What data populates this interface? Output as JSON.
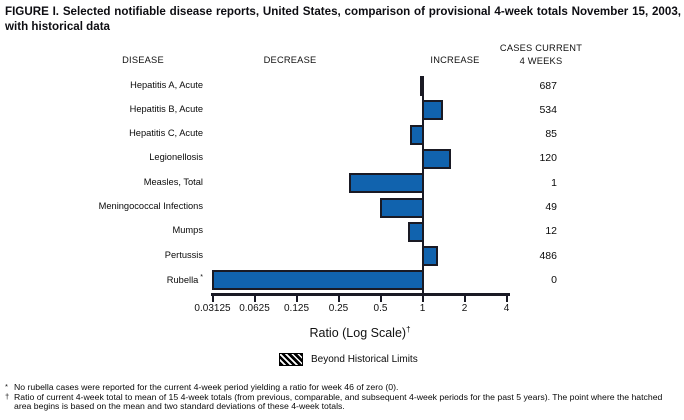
{
  "title": "FIGURE I. Selected notifiable disease reports, United States, comparison of provisional 4-week totals November 15, 2003, with historical data",
  "headers": {
    "disease": "DISEASE",
    "decrease": "DECREASE",
    "increase": "INCREASE",
    "cases_line1": "CASES CURRENT",
    "cases_line2": "4 WEEKS"
  },
  "chart_data": {
    "type": "bar",
    "orientation": "horizontal",
    "scale": "log2",
    "xlim": [
      0.03125,
      4
    ],
    "baseline_ratio": 1,
    "x_ticks": [
      0.03125,
      0.0625,
      0.125,
      0.25,
      0.5,
      1,
      2,
      4
    ],
    "x_tick_labels": [
      "0.03125",
      "0.0625",
      "0.125",
      "0.25",
      "0.5",
      "1",
      "2",
      "4"
    ],
    "xlabel": "Ratio (Log Scale)",
    "xlabel_superscript": "†",
    "legend_label": "Beyond Historical Limits",
    "rows": [
      {
        "disease": "Hepatitis A, Acute",
        "ratio": 0.97,
        "cases": "687"
      },
      {
        "disease": "Hepatitis B, Acute",
        "ratio": 1.37,
        "cases": "534"
      },
      {
        "disease": "Hepatitis C, Acute",
        "ratio": 0.83,
        "cases": "85"
      },
      {
        "disease": "Legionellosis",
        "ratio": 1.55,
        "cases": "120"
      },
      {
        "disease": "Measles, Total",
        "ratio": 0.3,
        "cases": "1"
      },
      {
        "disease": "Meningococcal Infections",
        "ratio": 0.5,
        "cases": "49"
      },
      {
        "disease": "Mumps",
        "ratio": 0.8,
        "cases": "12"
      },
      {
        "disease": "Pertussis",
        "ratio": 1.25,
        "cases": "486"
      },
      {
        "disease": "Rubella",
        "label_suffix": "*",
        "ratio": 0.03125,
        "cases": "0"
      }
    ]
  },
  "footnotes": [
    {
      "marker": "*",
      "text": "No rubella cases were reported for the current 4-week period yielding a ratio for week 46 of zero (0)."
    },
    {
      "marker": "†",
      "text": "Ratio of current 4-week total to mean of 15 4-week totals (from previous, comparable, and subsequent 4-week periods for the past 5 years). The point where the hatched area begins is based on the mean and two standard deviations of these 4-week totals."
    }
  ],
  "colors": {
    "bar_fill": "#1163ae",
    "bar_border": "#1a1a24",
    "axis": "#1a1a24"
  }
}
